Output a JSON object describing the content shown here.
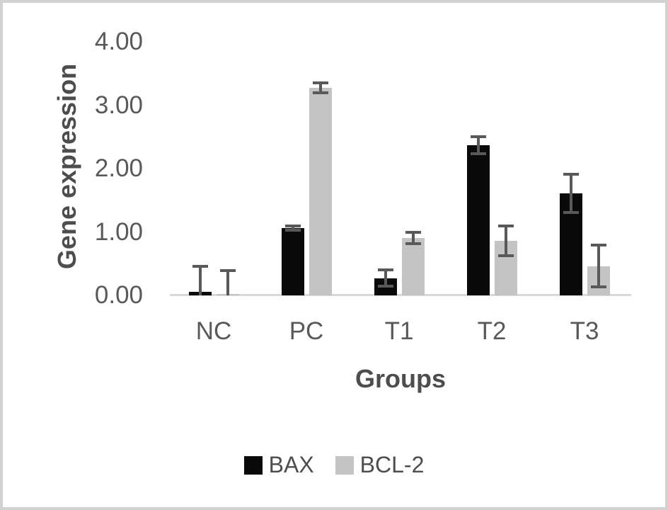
{
  "chart_data": {
    "type": "bar",
    "title": "",
    "xlabel": "Groups",
    "ylabel": "Gene expression",
    "categories": [
      "NC",
      "PC",
      "T1",
      "T2",
      "T3"
    ],
    "series": [
      {
        "name": "BAX",
        "color": "#0a0a0a",
        "values": [
          0.06,
          1.06,
          0.27,
          2.37,
          1.61
        ],
        "errors": [
          0.4,
          0.03,
          0.13,
          0.13,
          0.3
        ]
      },
      {
        "name": "BCL-2",
        "color": "#c4c4c4",
        "values": [
          0.02,
          3.27,
          0.91,
          0.86,
          0.46
        ],
        "errors": [
          0.37,
          0.08,
          0.09,
          0.23,
          0.33
        ]
      }
    ],
    "ylim": [
      0,
      4
    ],
    "ytick_labels": [
      "0.00",
      "1.00",
      "2.00",
      "3.00",
      "4.00"
    ],
    "grid": false,
    "legend_position": "bottom-center",
    "colors": {
      "error_bar": "#595959",
      "axis_line": "#d9d9d9",
      "tick_text": "#595959",
      "title_text": "#4d4d4d",
      "frame_border": "#d2d2d2",
      "background": "#ffffff"
    }
  }
}
